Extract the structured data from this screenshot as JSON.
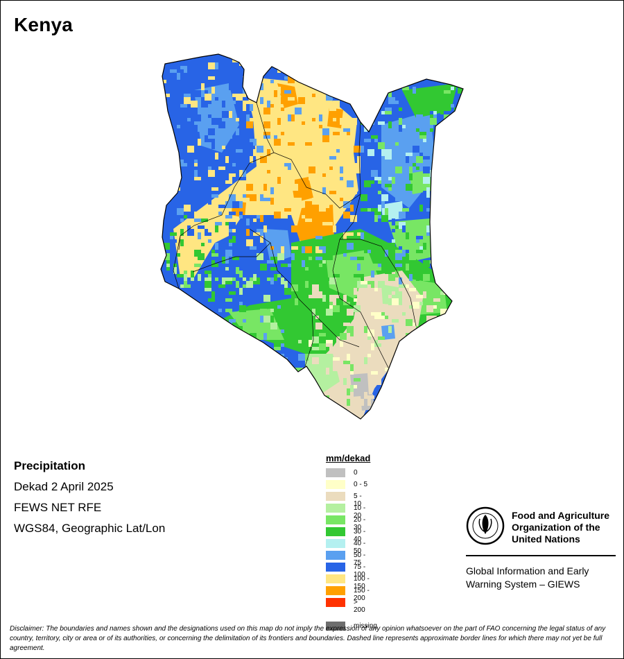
{
  "title": "Kenya",
  "info": {
    "heading": "Precipitation",
    "period": "Dekad 2 April 2025",
    "source": "FEWS NET RFE",
    "projection": "WGS84, Geographic Lat/Lon"
  },
  "legend": {
    "title": "mm/dekad",
    "items": [
      {
        "label": "0",
        "color": "#c0c0c0"
      },
      {
        "label": "0 - 5",
        "color": "#ffffc8"
      },
      {
        "label": "5 - 10",
        "color": "#ebdcbe"
      },
      {
        "label": "10 - 20",
        "color": "#b4f0a0"
      },
      {
        "label": "20 - 30",
        "color": "#78e664"
      },
      {
        "label": "30 - 40",
        "color": "#32c832"
      },
      {
        "label": "40 - 50",
        "color": "#b4f0f0"
      },
      {
        "label": "50 - 75",
        "color": "#5aa0f0"
      },
      {
        "label": "75 - 100",
        "color": "#2864e6"
      },
      {
        "label": "100 - 150",
        "color": "#ffe682"
      },
      {
        "label": "150 - 200",
        "color": "#ffa000"
      },
      {
        "label": "> 200",
        "color": "#ff3200"
      }
    ],
    "missing": {
      "label": "missing",
      "color": "#6e6e6e"
    }
  },
  "logo": {
    "org_line1": "Food and Agriculture",
    "org_line2": "Organization of the",
    "org_line3": "United Nations",
    "logo_letters": "FAO FIAT PANIS",
    "system_line1": "Global Information and Early",
    "system_line2": "Warning System – GIEWS"
  },
  "disclaimer": "Disclaimer: The boundaries and names shown and the designations used on this map do not imply the expression of any opinion whatsoever on the part of FAO concerning the legal status of any country, territory, city or area or of its authorities, or concerning the delimitation of its frontiers and boundaries. Dashed line represents approximate border lines for which there may not yet be full agreement."
}
